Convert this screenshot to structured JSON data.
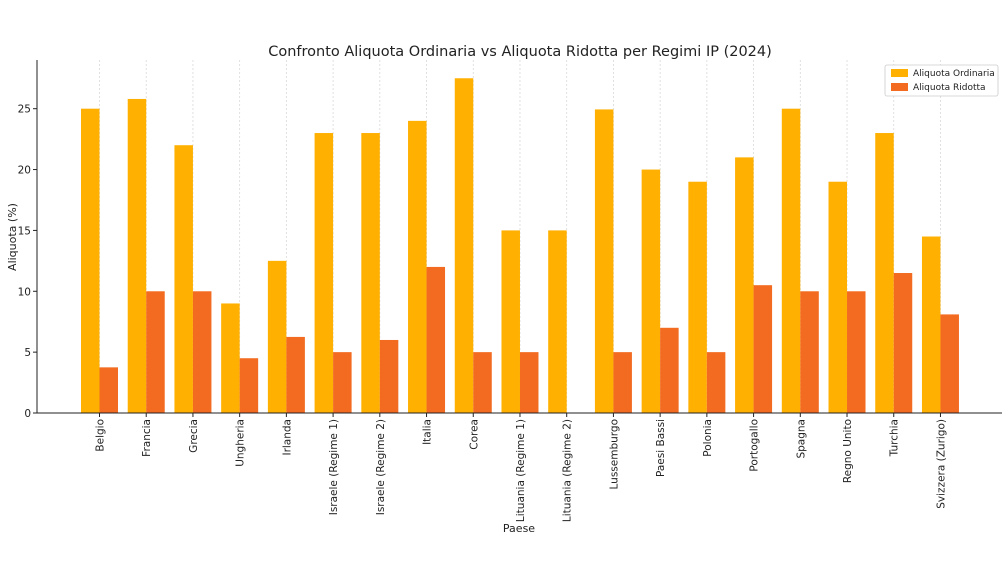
{
  "chart_data": {
    "type": "bar",
    "title": "Confronto Aliquota Ordinaria vs Aliquota Ridotta per Regimi IP (2024)",
    "xlabel": "Paese",
    "ylabel": "Aliquota (%)",
    "ylim": [
      0,
      29
    ],
    "yticks": [
      0,
      5,
      10,
      15,
      20,
      25
    ],
    "grid": "vertical dashed",
    "legend_position": "top-right",
    "categories": [
      "Belgio",
      "Francia",
      "Grecia",
      "Ungheria",
      "Irlanda",
      "Israele (Regime 1)",
      "Israele (Regime 2)",
      "Italia",
      "Corea",
      "Lituania (Regime 1)",
      "Lituania (Regime 2)",
      "Lussemburgo",
      "Paesi Bassi",
      "Polonia",
      "Portogallo",
      "Spagna",
      "Regno Unito",
      "Turchia",
      "Svizzera (Zurigo)"
    ],
    "series": [
      {
        "name": "Aliquota Ordinaria",
        "color": "#FFB000",
        "values": [
          25,
          25.8,
          22,
          9,
          12.5,
          23,
          23,
          24,
          27.5,
          15,
          15,
          24.94,
          20,
          19,
          21,
          25,
          19,
          23,
          14.5
        ]
      },
      {
        "name": "Aliquota Ridotta",
        "color": "#F26B21",
        "values": [
          3.75,
          10,
          10,
          4.5,
          6.25,
          5,
          6,
          12,
          5,
          5,
          0,
          5,
          7,
          5,
          10.5,
          10,
          10,
          11.5,
          8.1
        ]
      }
    ]
  }
}
